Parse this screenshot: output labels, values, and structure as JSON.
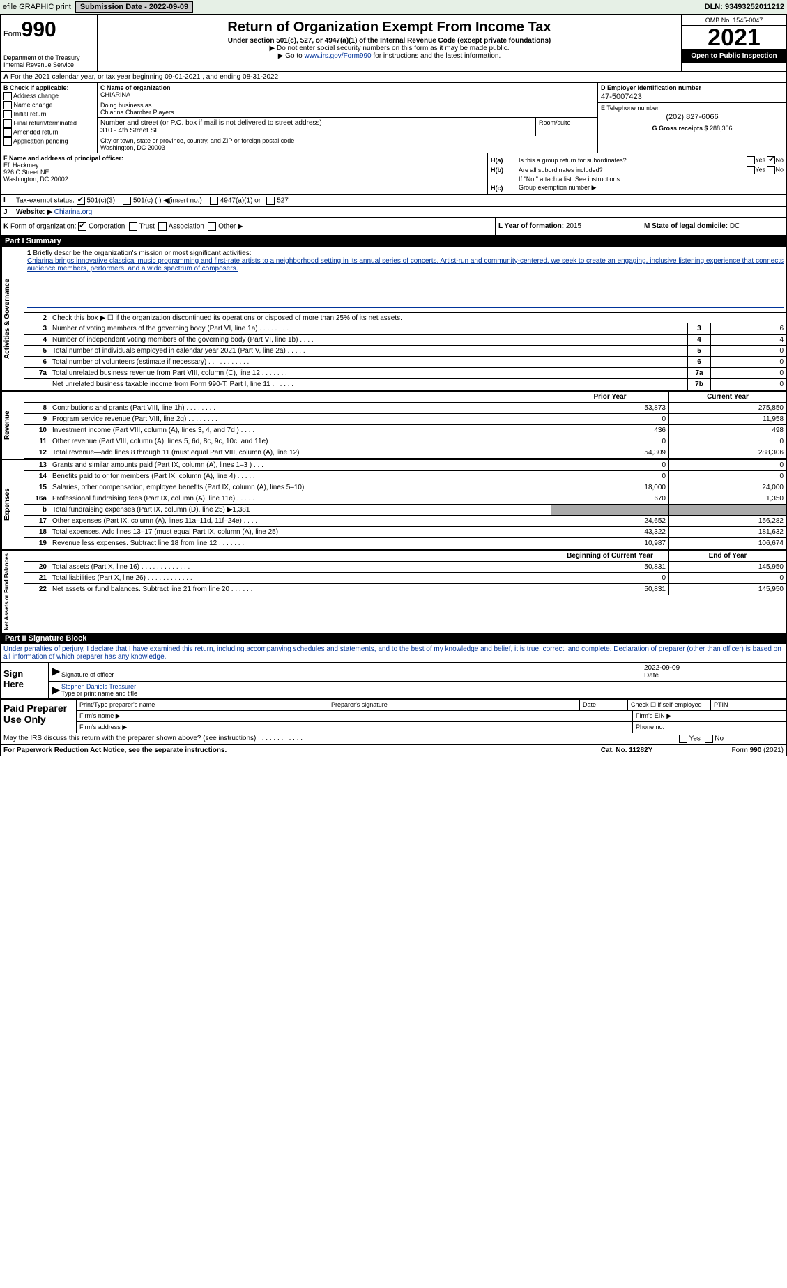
{
  "topbar": {
    "efile": "efile GRAPHIC print",
    "submission_label": "Submission Date - ",
    "submission_date": "2022-09-09",
    "dln_label": "DLN: ",
    "dln": "93493252011212"
  },
  "header": {
    "form_word": "Form",
    "form_num": "990",
    "title": "Return of Organization Exempt From Income Tax",
    "subtitle": "Under section 501(c), 527, or 4947(a)(1) of the Internal Revenue Code (except private foundations)",
    "note1": "▶ Do not enter social security numbers on this form as it may be made public.",
    "note2_pre": "▶ Go to ",
    "note2_link": "www.irs.gov/Form990",
    "note2_post": " for instructions and the latest information.",
    "omb": "OMB No. 1545-0047",
    "year": "2021",
    "open": "Open to Public Inspection",
    "dept": "Department of the Treasury\nInternal Revenue Service"
  },
  "lineA": "For the 2021 calendar year, or tax year beginning 09-01-2021    , and ending 08-31-2022",
  "boxB": {
    "label": "B Check if applicable:",
    "items": [
      "Address change",
      "Name change",
      "Initial return",
      "Final return/terminated",
      "Amended return",
      "Application pending"
    ]
  },
  "orgC": {
    "label": "C Name of organization",
    "name": "CHIARINA",
    "dba_label": "Doing business as",
    "dba": "Chiarina Chamber Players",
    "street_label": "Number and street (or P.O. box if mail is not delivered to street address)",
    "street": "310 - 4th Street SE",
    "room_label": "Room/suite",
    "city_label": "City or town, state or province, country, and ZIP or foreign postal code",
    "city": "Washington, DC  20003"
  },
  "colD": {
    "ein_label": "D Employer identification number",
    "ein": "47-5007423",
    "phone_label": "E Telephone number",
    "phone": "(202) 827-6066",
    "gross_label": "G Gross receipts $ ",
    "gross": "288,306"
  },
  "boxF": {
    "label": "F  Name and address of principal officer:",
    "name": "Efi Hackmey",
    "addr1": "926 C Street NE",
    "addr2": "Washington, DC  20002"
  },
  "boxH": {
    "ha_label": "H(a)",
    "ha_text": "Is this a group return for subordinates?",
    "ha_ans_yes": "Yes",
    "ha_ans_no": "No",
    "hb_label": "H(b)",
    "hb_text": "Are all subordinates included?",
    "hb_note": "If \"No,\" attach a list. See instructions.",
    "hc_label": "H(c)",
    "hc_text": "Group exemption number ▶"
  },
  "lineI": {
    "label": "I",
    "text": "Tax-exempt status:",
    "opts": [
      "501(c)(3)",
      "501(c) (  ) ◀(insert no.)",
      "4947(a)(1) or",
      "527"
    ]
  },
  "lineJ": {
    "label": "J",
    "text": "Website: ▶ ",
    "url": "Chiarina.org"
  },
  "lineK": {
    "label": "K",
    "text": "Form of organization:",
    "opts": [
      "Corporation",
      "Trust",
      "Association",
      "Other ▶"
    ]
  },
  "lineL": {
    "year_label": "L Year of formation: ",
    "year": "2015",
    "state_label": "M State of legal domicile: ",
    "state": "DC"
  },
  "part1": {
    "header": "Part I        Summary",
    "section1_label": "Activities & Governance",
    "q1_label": "1",
    "q1_text": "Briefly describe the organization's mission or most significant activities:",
    "q1_desc": "Chiarina brings innovative classical music programming and first-rate artists to a neighborhood setting in its annual series of concerts. Artist-run and community-centered, we seek to create an engaging, inclusive listening experience that connects audience members, performers, and a wide spectrum of composers.",
    "q2_label": "2",
    "q2_text": "Check this box ▶ ☐ if the organization discontinued its operations or disposed of more than 25% of its net assets.",
    "rows_gov": [
      {
        "n": "3",
        "t": "Number of voting members of the governing body (Part VI, line 1a)   .   .   .   .   .   .   .   .",
        "b": "3",
        "v": "6"
      },
      {
        "n": "4",
        "t": "Number of independent voting members of the governing body (Part VI, line 1b)   .   .   .   .",
        "b": "4",
        "v": "4"
      },
      {
        "n": "5",
        "t": "Total number of individuals employed in calendar year 2021 (Part V, line 2a)   .   .   .   .   .",
        "b": "5",
        "v": "0"
      },
      {
        "n": "6",
        "t": "Total number of volunteers (estimate if necessary)    .   .   .   .   .   .   .   .   .   .   .",
        "b": "6",
        "v": "0"
      },
      {
        "n": "7a",
        "t": "Total unrelated business revenue from Part VIII, column (C), line 12   .   .   .   .   .   .   .",
        "b": "7a",
        "v": "0"
      },
      {
        "n": "",
        "t": "Net unrelated business taxable income from Form 990-T, Part I, line 11   .   .   .   .   .   .",
        "b": "7b",
        "v": "0"
      }
    ],
    "section2_label": "Revenue",
    "col_prior": "Prior Year",
    "col_curr": "Current Year",
    "rows_rev": [
      {
        "n": "8",
        "t": "Contributions and grants (Part VIII, line 1h)   .   .   .   .   .   .   .   .",
        "p": "53,873",
        "c": "275,850"
      },
      {
        "n": "9",
        "t": "Program service revenue (Part VIII, line 2g)   .   .   .   .   .   .   .   .",
        "p": "0",
        "c": "11,958"
      },
      {
        "n": "10",
        "t": "Investment income (Part VIII, column (A), lines 3, 4, and 7d )   .   .   .   .",
        "p": "436",
        "c": "498"
      },
      {
        "n": "11",
        "t": "Other revenue (Part VIII, column (A), lines 5, 6d, 8c, 9c, 10c, and 11e)",
        "p": "0",
        "c": "0"
      },
      {
        "n": "12",
        "t": "Total revenue—add lines 8 through 11 (must equal Part VIII, column (A), line 12)",
        "p": "54,309",
        "c": "288,306"
      }
    ],
    "section3_label": "Expenses",
    "rows_exp": [
      {
        "n": "13",
        "t": "Grants and similar amounts paid (Part IX, column (A), lines 1–3 )   .   .   .",
        "p": "0",
        "c": "0"
      },
      {
        "n": "14",
        "t": "Benefits paid to or for members (Part IX, column (A), line 4)   .   .   .   .   .",
        "p": "0",
        "c": "0"
      },
      {
        "n": "15",
        "t": "Salaries, other compensation, employee benefits (Part IX, column (A), lines 5–10)",
        "p": "18,000",
        "c": "24,000"
      },
      {
        "n": "16a",
        "t": "Professional fundraising fees (Part IX, column (A), line 11e)   .   .   .   .   .",
        "p": "670",
        "c": "1,350"
      },
      {
        "n": "b",
        "t": "Total fundraising expenses (Part IX, column (D), line 25) ▶1,381",
        "p": "",
        "c": "",
        "shaded": true
      },
      {
        "n": "17",
        "t": "Other expenses (Part IX, column (A), lines 11a–11d, 11f–24e)   .   .   .   .",
        "p": "24,652",
        "c": "156,282"
      },
      {
        "n": "18",
        "t": "Total expenses. Add lines 13–17 (must equal Part IX, column (A), line 25)",
        "p": "43,322",
        "c": "181,632"
      },
      {
        "n": "19",
        "t": "Revenue less expenses. Subtract line 18 from line 12   .   .   .   .   .   .   .",
        "p": "10,987",
        "c": "106,674"
      }
    ],
    "section4_label": "Net Assets or Fund Balances",
    "col_begin": "Beginning of Current Year",
    "col_end": "End of Year",
    "rows_net": [
      {
        "n": "20",
        "t": "Total assets (Part X, line 16)   .   .   .   .   .   .   .   .   .   .   .   .   .",
        "p": "50,831",
        "c": "145,950"
      },
      {
        "n": "21",
        "t": "Total liabilities (Part X, line 26)   .   .   .   .   .   .   .   .   .   .   .   .",
        "p": "0",
        "c": "0"
      },
      {
        "n": "22",
        "t": "Net assets or fund balances. Subtract line 21 from line 20   .   .   .   .   .   .",
        "p": "50,831",
        "c": "145,950"
      }
    ]
  },
  "part2": {
    "header": "Part II        Signature Block",
    "perjury": "Under penalties of perjury, I declare that I have examined this return, including accompanying schedules and statements, and to the best of my knowledge and belief, it is true, correct, and complete. Declaration of preparer (other than officer) is based on all information of which preparer has any knowledge.",
    "sign_here": "Sign Here",
    "sig_officer": "Signature of officer",
    "sig_date": "2022-09-09",
    "date_label": "Date",
    "typed_name": "Stephen Daniels Treasurer",
    "typed_label": "Type or print name and title",
    "paid": "Paid Preparer Use Only",
    "p_name": "Print/Type preparer's name",
    "p_sig": "Preparer's signature",
    "p_date": "Date",
    "p_check": "Check ☐ if self-employed",
    "p_ptin": "PTIN",
    "p_firm": "Firm's name    ▶",
    "p_ein": "Firm's EIN ▶",
    "p_addr": "Firm's address ▶",
    "p_phone": "Phone no.",
    "may_irs": "May the IRS discuss this return with the preparer shown above? (see instructions)   .   .   .   .   .   .   .   .   .   .   .   .",
    "may_yes": "Yes",
    "may_no": "No"
  },
  "footer": {
    "left": "For Paperwork Reduction Act Notice, see the separate instructions.",
    "mid": "Cat. No. 11282Y",
    "right": "Form 990 (2021)"
  }
}
